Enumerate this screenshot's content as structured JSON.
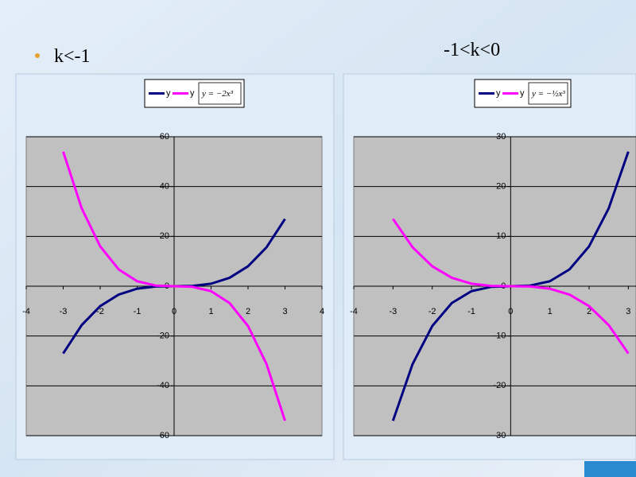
{
  "slide": {
    "left_label": "k<-1",
    "right_label": "-1<k<0"
  },
  "chart_data": [
    {
      "type": "line",
      "formula": "y = −2x³",
      "x": [
        -3,
        -2.5,
        -2,
        -1.5,
        -1,
        -0.5,
        0,
        0.5,
        1,
        1.5,
        2,
        2.5,
        3
      ],
      "series": [
        {
          "name": "y",
          "color": "#000080",
          "values": [
            -27,
            -15.625,
            -8,
            -3.375,
            -1,
            -0.125,
            0,
            0.125,
            1,
            3.375,
            8,
            15.625,
            27
          ]
        },
        {
          "name": "y",
          "color": "#ff00ff",
          "values": [
            54,
            31.25,
            16,
            6.75,
            2,
            0.25,
            0,
            -0.25,
            -2,
            -6.75,
            -16,
            -31.25,
            -54
          ]
        }
      ],
      "xlim": [
        -4,
        4
      ],
      "xticks": [
        -4,
        -3,
        -2,
        -1,
        0,
        1,
        2,
        3,
        4
      ],
      "ylim": [
        -60,
        60
      ],
      "yticks": [
        -60,
        -40,
        -20,
        0,
        20,
        40,
        60
      ],
      "grid": true
    },
    {
      "type": "line",
      "formula": "y = −½x³",
      "x": [
        -3,
        -2.5,
        -2,
        -1.5,
        -1,
        -0.5,
        0,
        0.5,
        1,
        1.5,
        2,
        2.5,
        3
      ],
      "series": [
        {
          "name": "y",
          "color": "#000080",
          "values": [
            -27,
            -15.625,
            -8,
            -3.375,
            -1,
            -0.125,
            0,
            0.125,
            1,
            3.375,
            8,
            15.625,
            27
          ]
        },
        {
          "name": "y",
          "color": "#ff00ff",
          "values": [
            13.5,
            7.8125,
            4,
            1.6875,
            0.5,
            0.0625,
            0,
            -0.0625,
            -0.5,
            -1.6875,
            -4,
            -7.8125,
            -13.5
          ]
        }
      ],
      "xlim": [
        -4,
        3.5
      ],
      "xticks": [
        -4,
        -3,
        -2,
        -1,
        0,
        1,
        2,
        3
      ],
      "ylim": [
        -30,
        30
      ],
      "yticks": [
        -30,
        -20,
        -10,
        0,
        10,
        20,
        30
      ],
      "grid": true
    }
  ]
}
